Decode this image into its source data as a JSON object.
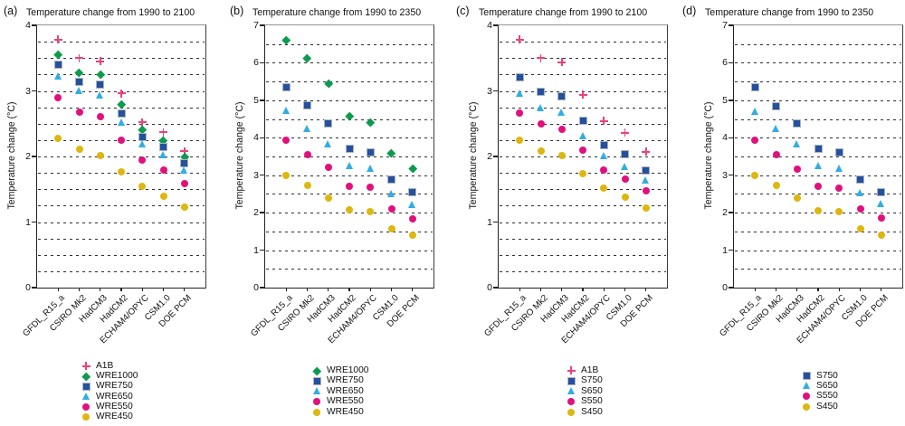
{
  "figure": {
    "y_axis_label": "Temperature change (°C)",
    "models": [
      "GFDL_R15_a",
      "CSIRO Mk2",
      "HadCM3",
      "HadCM2",
      "ECHAM4/OPYC",
      "CSM1.0",
      "DOE PCM"
    ]
  },
  "chart_data": [
    {
      "type": "scatter",
      "panel_label": "(a)",
      "title": "Temperature change from 1990 to 2100",
      "ylabel": "Temperature change (°C)",
      "ylim": [
        0,
        4
      ],
      "ytick_step": 1,
      "gridline_step": 0.25,
      "grid": "horizontal-dashed",
      "legend_position": "below-plot",
      "categories": [
        "GFDL_R15_a",
        "CSIRO Mk2",
        "HadCM3",
        "HadCM2",
        "ECHAM4/OPYC",
        "CSM1.0",
        "DOE PCM"
      ],
      "series": [
        {
          "name": "A1B",
          "marker": "plus",
          "color": "#ec407d",
          "values": [
            3.78,
            3.5,
            3.45,
            2.96,
            2.52,
            2.37,
            2.08
          ]
        },
        {
          "name": "WRE1000",
          "marker": "diamond",
          "color": "#0d9b4d",
          "values": [
            3.55,
            3.28,
            3.25,
            2.8,
            2.41,
            2.25,
            1.99
          ]
        },
        {
          "name": "WRE750",
          "marker": "square",
          "color": "#24509e",
          "values": [
            3.4,
            3.14,
            3.09,
            2.66,
            2.3,
            2.14,
            1.89
          ]
        },
        {
          "name": "WRE650",
          "marker": "triangle",
          "color": "#31ade4",
          "values": [
            3.22,
            2.99,
            2.93,
            2.51,
            2.18,
            2.02,
            1.78
          ]
        },
        {
          "name": "WRE550",
          "marker": "circle",
          "color": "#e20f7e",
          "values": [
            2.9,
            2.68,
            2.61,
            2.25,
            1.95,
            1.8,
            1.59
          ]
        },
        {
          "name": "WRE450",
          "marker": "circle",
          "color": "#ddb70f",
          "values": [
            2.27,
            2.11,
            2.02,
            1.77,
            1.54,
            1.4,
            1.23
          ]
        }
      ]
    },
    {
      "type": "scatter",
      "panel_label": "(b)",
      "title": "Temperature change from 1990 to 2350",
      "ylabel": "Temperature change (°C)",
      "ylim": [
        0,
        7
      ],
      "ytick_step": 1,
      "gridline_step": 0.5,
      "grid": "horizontal-dashed",
      "legend_position": "below-plot",
      "categories": [
        "GFDL_R15_a",
        "CSIRO Mk2",
        "HadCM3",
        "HadCM2",
        "ECHAM4/OPYC",
        "CSM1.0",
        "DOE PCM"
      ],
      "series": [
        {
          "name": "WRE1000",
          "marker": "diamond",
          "color": "#0d9b4d",
          "values": [
            6.6,
            6.13,
            5.45,
            4.58,
            4.42,
            3.58,
            3.17
          ]
        },
        {
          "name": "WRE750",
          "marker": "square",
          "color": "#24509e",
          "values": [
            5.35,
            4.86,
            4.37,
            3.7,
            3.62,
            2.88,
            2.55
          ]
        },
        {
          "name": "WRE650",
          "marker": "triangle",
          "color": "#31ade4",
          "values": [
            4.7,
            4.24,
            3.81,
            3.24,
            3.16,
            2.5,
            2.21
          ]
        },
        {
          "name": "WRE550",
          "marker": "circle",
          "color": "#e20f7e",
          "values": [
            3.94,
            3.56,
            3.2,
            2.7,
            2.68,
            2.1,
            1.84
          ]
        },
        {
          "name": "WRE450",
          "marker": "circle",
          "color": "#ddb70f",
          "values": [
            3.0,
            2.73,
            2.4,
            2.08,
            2.03,
            1.57,
            1.4
          ]
        }
      ]
    },
    {
      "type": "scatter",
      "panel_label": "(c)",
      "title": "Temperature change from 1990 to 2100",
      "ylabel": "Temperature change (°C)",
      "ylim": [
        0,
        4
      ],
      "ytick_step": 1,
      "gridline_step": 0.25,
      "grid": "horizontal-dashed",
      "legend_position": "below-plot",
      "categories": [
        "GFDL_R15_a",
        "CSIRO Mk2",
        "HadCM3",
        "HadCM2",
        "ECHAM4/OPYC",
        "CSM1.0",
        "DOE PCM"
      ],
      "series": [
        {
          "name": "A1B",
          "marker": "plus",
          "color": "#ec407d",
          "values": [
            3.78,
            3.5,
            3.44,
            2.94,
            2.54,
            2.36,
            2.07
          ]
        },
        {
          "name": "S750",
          "marker": "square",
          "color": "#24509e",
          "values": [
            3.21,
            2.98,
            2.92,
            2.54,
            2.17,
            2.03,
            1.78
          ]
        },
        {
          "name": "S650",
          "marker": "triangle",
          "color": "#31ade4",
          "values": [
            2.95,
            2.74,
            2.66,
            2.31,
            2.0,
            1.84,
            1.63
          ]
        },
        {
          "name": "S550",
          "marker": "circle",
          "color": "#e20f7e",
          "values": [
            2.66,
            2.49,
            2.41,
            2.09,
            1.8,
            1.65,
            1.48
          ]
        },
        {
          "name": "S450",
          "marker": "circle",
          "color": "#ddb70f",
          "values": [
            2.25,
            2.08,
            2.01,
            1.74,
            1.52,
            1.38,
            1.22
          ]
        }
      ]
    },
    {
      "type": "scatter",
      "panel_label": "(d)",
      "title": "Temperature change from 1990 to 2350",
      "ylabel": "Temperature change (°C)",
      "ylim": [
        0,
        7
      ],
      "ytick_step": 1,
      "gridline_step": 0.5,
      "grid": "horizontal-dashed",
      "legend_position": "below-plot",
      "categories": [
        "GFDL_R15_a",
        "CSIRO Mk2",
        "HadCM3",
        "HadCM2",
        "ECHAM4/OPYC",
        "CSM1.0",
        "DOE PCM"
      ],
      "series": [
        {
          "name": "S750",
          "marker": "square",
          "color": "#24509e",
          "values": [
            5.35,
            4.85,
            4.37,
            3.71,
            3.6,
            2.89,
            2.55
          ]
        },
        {
          "name": "S650",
          "marker": "triangle",
          "color": "#31ade4",
          "values": [
            4.69,
            4.22,
            3.81,
            3.24,
            3.16,
            2.52,
            2.22
          ]
        },
        {
          "name": "S550",
          "marker": "circle",
          "color": "#e20f7e",
          "values": [
            3.94,
            3.55,
            3.17,
            2.71,
            2.66,
            2.1,
            1.85
          ]
        },
        {
          "name": "S450",
          "marker": "circle",
          "color": "#ddb70f",
          "values": [
            3.0,
            2.72,
            2.4,
            2.06,
            2.02,
            1.58,
            1.4
          ]
        }
      ]
    }
  ]
}
